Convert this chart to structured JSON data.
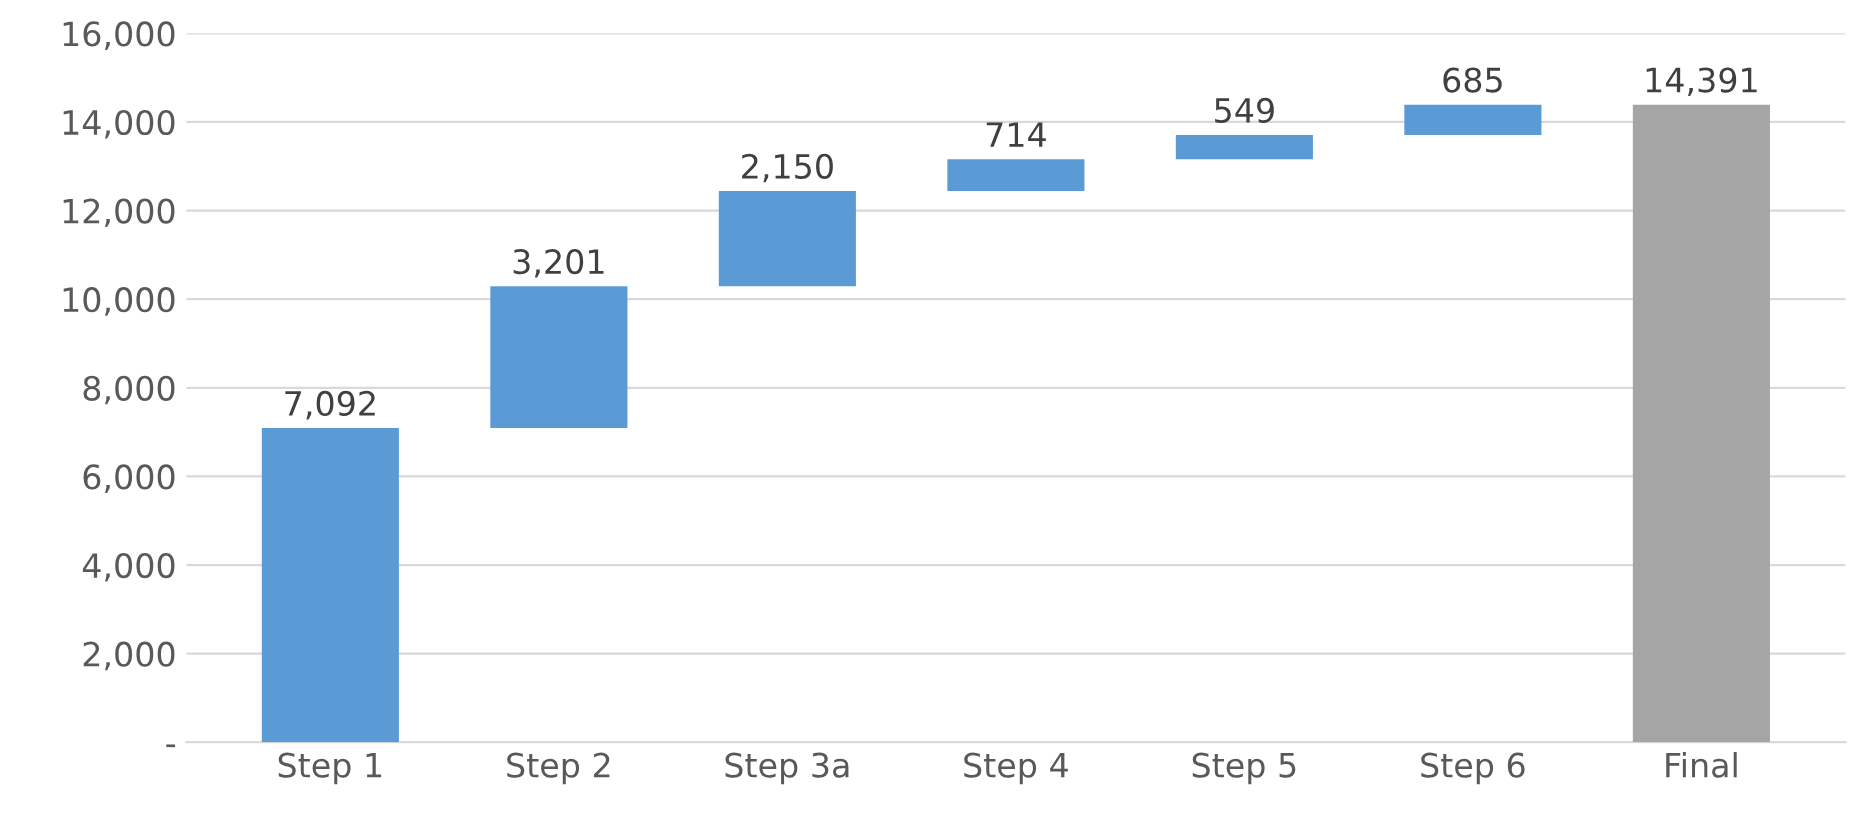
{
  "chart_data": {
    "type": "bar",
    "categories": [
      "Step 1",
      "Step 2",
      "Step 3a",
      "Step 4",
      "Step 5",
      "Step 6",
      "Final"
    ],
    "values": [
      7092,
      3201,
      2150,
      714,
      549,
      685,
      14391
    ],
    "base": [
      0,
      7092,
      10293,
      12443,
      13157,
      13706,
      0
    ],
    "colors": [
      "#5b9bd5",
      "#5b9bd5",
      "#5b9bd5",
      "#5b9bd5",
      "#5b9bd5",
      "#5b9bd5",
      "#a5a5a5"
    ],
    "ylim": [
      0,
      16000
    ],
    "yticks": [
      {
        "value": 0,
        "label": "-"
      },
      {
        "value": 2000,
        "label": "2,000"
      },
      {
        "value": 4000,
        "label": "4,000"
      },
      {
        "value": 6000,
        "label": "6,000"
      },
      {
        "value": 8000,
        "label": "8,000"
      },
      {
        "value": 10000,
        "label": "10,000"
      },
      {
        "value": 12000,
        "label": "12,000"
      },
      {
        "value": 14000,
        "label": "14,000"
      },
      {
        "value": 16000,
        "label": "16,000"
      }
    ],
    "value_labels": [
      "7,092",
      "3,201",
      "2,150",
      "714",
      "549",
      "685",
      "14,391"
    ],
    "grid": "y",
    "legend": false
  }
}
